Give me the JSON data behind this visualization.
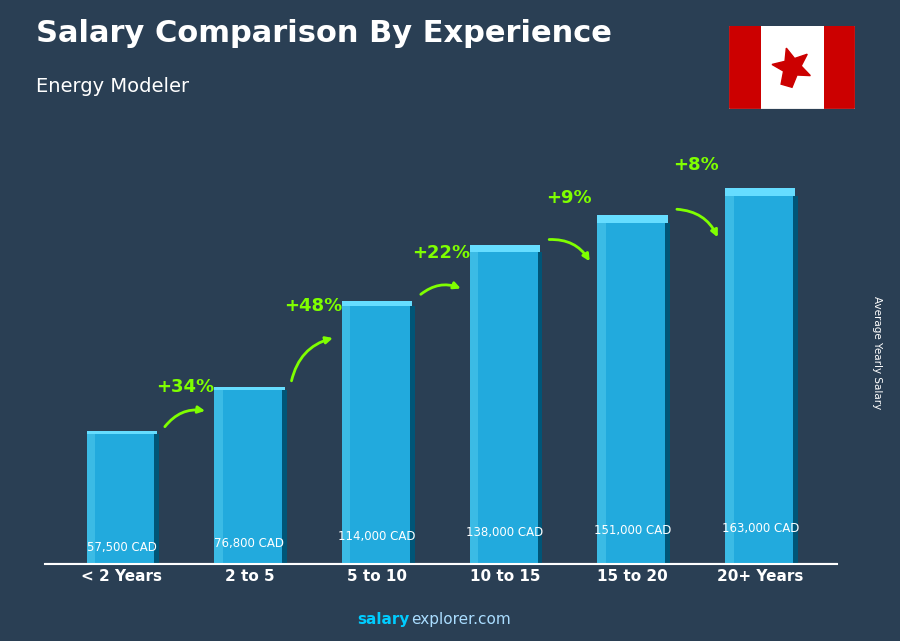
{
  "title": "Salary Comparison By Experience",
  "subtitle": "Energy Modeler",
  "categories": [
    "< 2 Years",
    "2 to 5",
    "5 to 10",
    "10 to 15",
    "15 to 20",
    "20+ Years"
  ],
  "values": [
    57500,
    76800,
    114000,
    138000,
    151000,
    163000
  ],
  "labels": [
    "57,500 CAD",
    "76,800 CAD",
    "114,000 CAD",
    "138,000 CAD",
    "151,000 CAD",
    "163,000 CAD"
  ],
  "pct_changes": [
    "+34%",
    "+48%",
    "+22%",
    "+9%",
    "+8%"
  ],
  "bar_color": "#22aadd",
  "bar_side_color": "#005577",
  "bar_top_color": "#66ddff",
  "bar_left_color": "#55ccee",
  "bg_color": "#2a3f54",
  "title_color": "#ffffff",
  "subtitle_color": "#ffffff",
  "label_color": "#ffffff",
  "pct_color": "#7fff00",
  "arrow_color": "#7fff00",
  "xlabel_color": "#ffffff",
  "ylabel_text": "Average Yearly Salary",
  "footer_salary": "salary",
  "footer_explorer": "explorer.com",
  "ylim": [
    0,
    190000
  ],
  "bar_width": 0.55
}
